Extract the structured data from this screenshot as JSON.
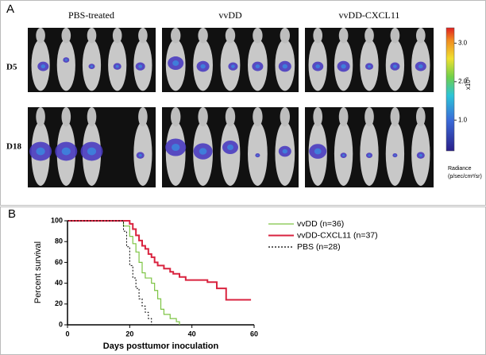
{
  "panel_a": {
    "label": "A",
    "groups": [
      "PBS-treated",
      "vvDD",
      "vvDD-CXCL11"
    ],
    "rows": [
      "D5",
      "D18"
    ],
    "colorbar": {
      "lim": [
        0.2,
        3.4
      ],
      "ticks": [
        {
          "value": 3,
          "label": "3.0"
        },
        {
          "value": 2,
          "label": "2.0"
        },
        {
          "value": 1,
          "label": "1.0"
        }
      ],
      "unit": "x10⁸",
      "title": [
        "Radiance",
        "(p/sec/cm²/sr)"
      ]
    }
  },
  "chart_data": {
    "type": "line",
    "panel_label": "B",
    "xlabel": "Days posttumor inoculation",
    "ylabel": "Percent survival",
    "xlim": [
      0,
      60
    ],
    "ylim": [
      0,
      100
    ],
    "xticks": [
      0,
      20,
      40,
      60
    ],
    "yticks": [
      0,
      20,
      40,
      60,
      80,
      100
    ],
    "step": true,
    "series": [
      {
        "name": "vvDD (n=36)",
        "color": "#7dc443",
        "dash": false,
        "x": [
          0,
          17,
          18,
          20,
          21,
          22,
          23,
          24,
          25,
          27,
          28,
          29,
          30,
          31,
          33,
          35,
          36
        ],
        "values": [
          100,
          100,
          95,
          85,
          78,
          70,
          60,
          50,
          45,
          40,
          33,
          25,
          15,
          10,
          6,
          3,
          0
        ]
      },
      {
        "name": "vvDD-CXCL11 (n=37)",
        "color": "#d9233f",
        "dash": false,
        "x": [
          0,
          19,
          20,
          21,
          22,
          23,
          24,
          25,
          26,
          27,
          28,
          29,
          31,
          33,
          34,
          36,
          38,
          45,
          48,
          51,
          59
        ],
        "values": [
          100,
          100,
          97,
          92,
          86,
          81,
          76,
          73,
          68,
          65,
          60,
          57,
          54,
          51,
          49,
          46,
          43,
          41,
          35,
          24,
          24
        ]
      },
      {
        "name": "PBS (n=28)",
        "color": "#000000",
        "dash": true,
        "x": [
          0,
          17,
          18,
          19,
          20,
          21,
          22,
          23,
          24,
          25,
          26,
          27
        ],
        "values": [
          100,
          100,
          90,
          75,
          57,
          45,
          35,
          25,
          18,
          12,
          6,
          0
        ]
      }
    ]
  }
}
